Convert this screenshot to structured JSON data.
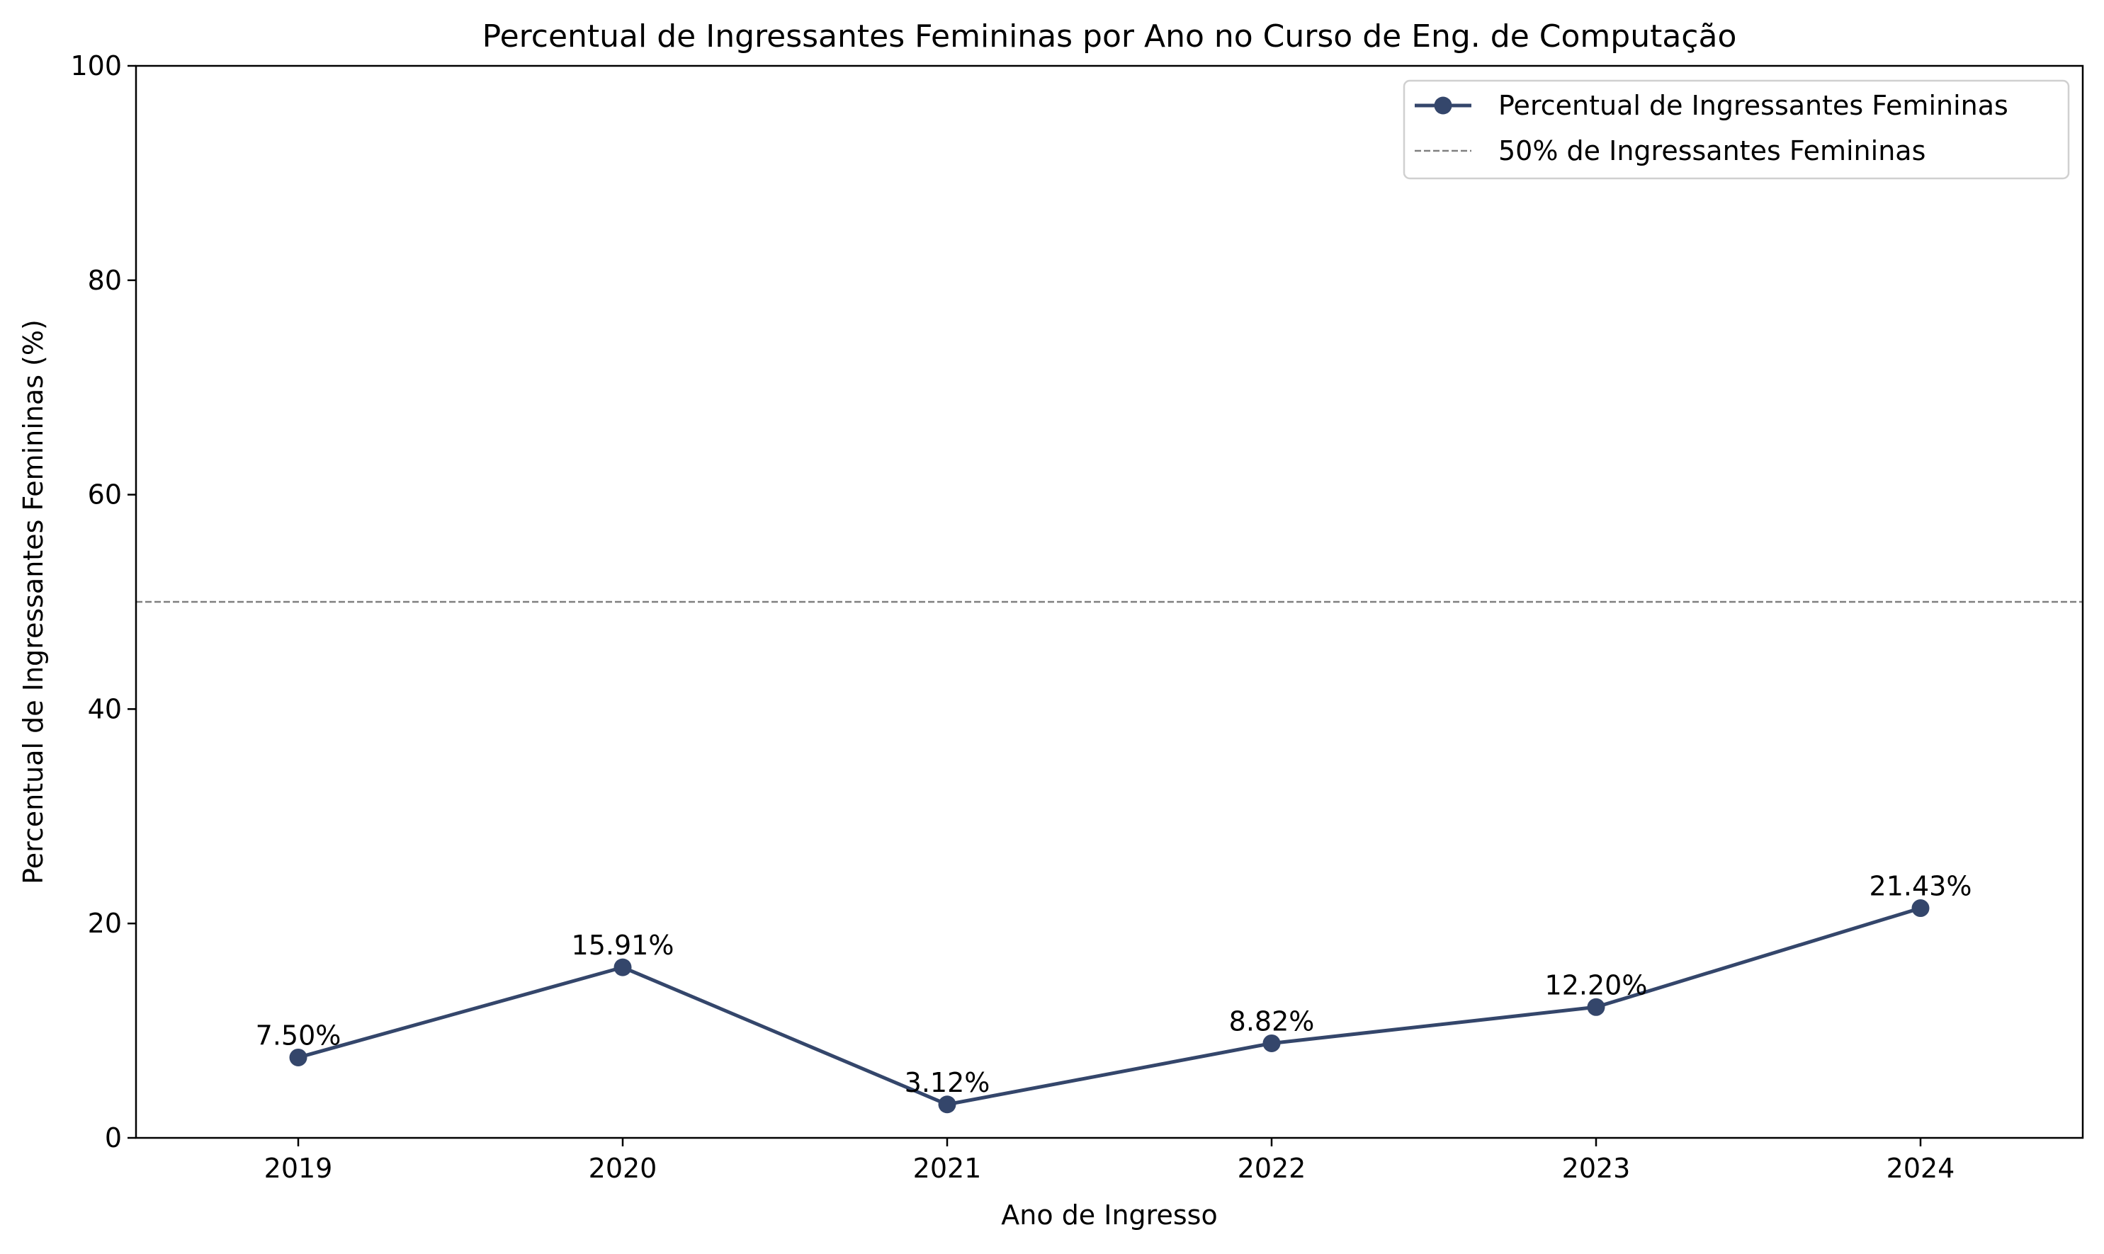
{
  "chart_data": {
    "type": "line",
    "title": "Percentual de Ingressantes Femininas por Ano no Curso de Eng. de Computação",
    "xlabel": "Ano de Ingresso",
    "ylabel": "Percentual de Ingressantes Femininas (%)",
    "categories": [
      "2019",
      "2020",
      "2021",
      "2022",
      "2023",
      "2024"
    ],
    "ylim": [
      0,
      100
    ],
    "yticks": [
      0,
      20,
      40,
      60,
      80,
      100
    ],
    "grid": false,
    "legend_position": "top-right",
    "series": [
      {
        "name": "Percentual de Ingressantes Femininas",
        "values": [
          7.5,
          15.91,
          3.12,
          8.82,
          12.2,
          21.43
        ],
        "data_labels": [
          "7.50%",
          "15.91%",
          "3.12%",
          "8.82%",
          "12.20%",
          "21.43%"
        ],
        "color": "#34466b",
        "style": "solid",
        "marker": "circle"
      }
    ],
    "reference_lines": [
      {
        "name": "50% de Ingressantes Femininas",
        "value": 50,
        "color": "#808080",
        "style": "dashed"
      }
    ]
  }
}
